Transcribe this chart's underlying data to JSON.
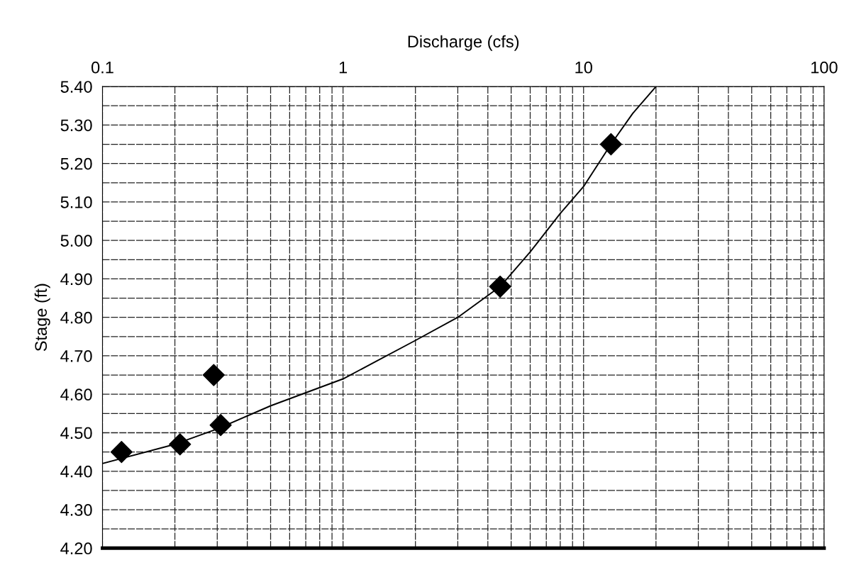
{
  "chart_data": {
    "type": "scatter",
    "xlabel": "Discharge (cfs)",
    "ylabel": "Stage (ft)",
    "log": "x",
    "grid": true,
    "legend": false,
    "marker": "diamond",
    "xlim": [
      0.1,
      100
    ],
    "xticks": [
      0.1,
      {
        "value": 0.2,
        "label": null
      },
      {
        "value": 0.3,
        "label": null
      },
      {
        "value": 0.4,
        "label": null
      },
      {
        "value": 0.5,
        "label": null
      },
      {
        "value": 0.6,
        "label": null
      },
      {
        "value": 0.7,
        "label": null
      },
      {
        "value": 0.8,
        "label": null
      },
      {
        "value": 0.9,
        "label": null
      },
      1,
      {
        "value": 2,
        "label": null
      },
      {
        "value": 3,
        "label": null
      },
      {
        "value": 4,
        "label": null
      },
      {
        "value": 5,
        "label": null
      },
      {
        "value": 6,
        "label": null
      },
      {
        "value": 7,
        "label": null
      },
      {
        "value": 8,
        "label": null
      },
      {
        "value": 9,
        "label": null
      },
      10,
      {
        "value": 20,
        "label": null
      },
      {
        "value": 30,
        "label": null
      },
      {
        "value": 40,
        "label": null
      },
      {
        "value": 50,
        "label": null
      },
      {
        "value": 60,
        "label": null
      },
      {
        "value": 70,
        "label": null
      },
      {
        "value": 80,
        "label": null
      },
      {
        "value": 90,
        "label": null
      },
      100
    ],
    "ylim": [
      4.2,
      5.4
    ],
    "yticks": [
      {
        "value": 4.2,
        "label": "4.20"
      },
      {
        "value": 4.25,
        "label": null
      },
      {
        "value": 4.3,
        "label": "4.30"
      },
      {
        "value": 4.35,
        "label": null
      },
      {
        "value": 4.4,
        "label": "4.40"
      },
      {
        "value": 4.45,
        "label": null
      },
      {
        "value": 4.5,
        "label": "4.50"
      },
      {
        "value": 4.55,
        "label": null
      },
      {
        "value": 4.6,
        "label": "4.60"
      },
      {
        "value": 4.65,
        "label": null
      },
      {
        "value": 4.7,
        "label": "4.70"
      },
      {
        "value": 4.75,
        "label": null
      },
      {
        "value": 4.8,
        "label": "4.80"
      },
      {
        "value": 4.85,
        "label": null
      },
      {
        "value": 4.9,
        "label": "4.90"
      },
      {
        "value": 4.95,
        "label": null
      },
      {
        "value": 5.0,
        "label": "5.00"
      },
      {
        "value": 5.05,
        "label": null
      },
      {
        "value": 5.1,
        "label": "5.10"
      },
      {
        "value": 5.15,
        "label": null
      },
      {
        "value": 5.2,
        "label": "5.20"
      },
      {
        "value": 5.25,
        "label": null
      },
      {
        "value": 5.3,
        "label": "5.30"
      },
      {
        "value": 5.35,
        "label": null
      },
      {
        "value": 5.4,
        "label": "5.40"
      }
    ],
    "series": [
      {
        "color": "#000000",
        "x": [
          0.12,
          0.21,
          0.31,
          0.29,
          4.5,
          13
        ],
        "values": [
          4.45,
          4.47,
          4.52,
          4.65,
          4.88,
          5.25
        ]
      },
      {
        "type": "line",
        "color": "#000000",
        "marker": "none",
        "x": [
          0.1,
          0.2,
          0.3,
          0.5,
          1,
          2,
          3,
          4.5,
          6,
          8,
          10,
          13,
          16,
          20
        ],
        "values": [
          4.42,
          4.47,
          4.51,
          4.57,
          4.64,
          4.74,
          4.8,
          4.88,
          4.97,
          5.07,
          5.14,
          5.25,
          5.33,
          5.4
        ]
      }
    ]
  }
}
